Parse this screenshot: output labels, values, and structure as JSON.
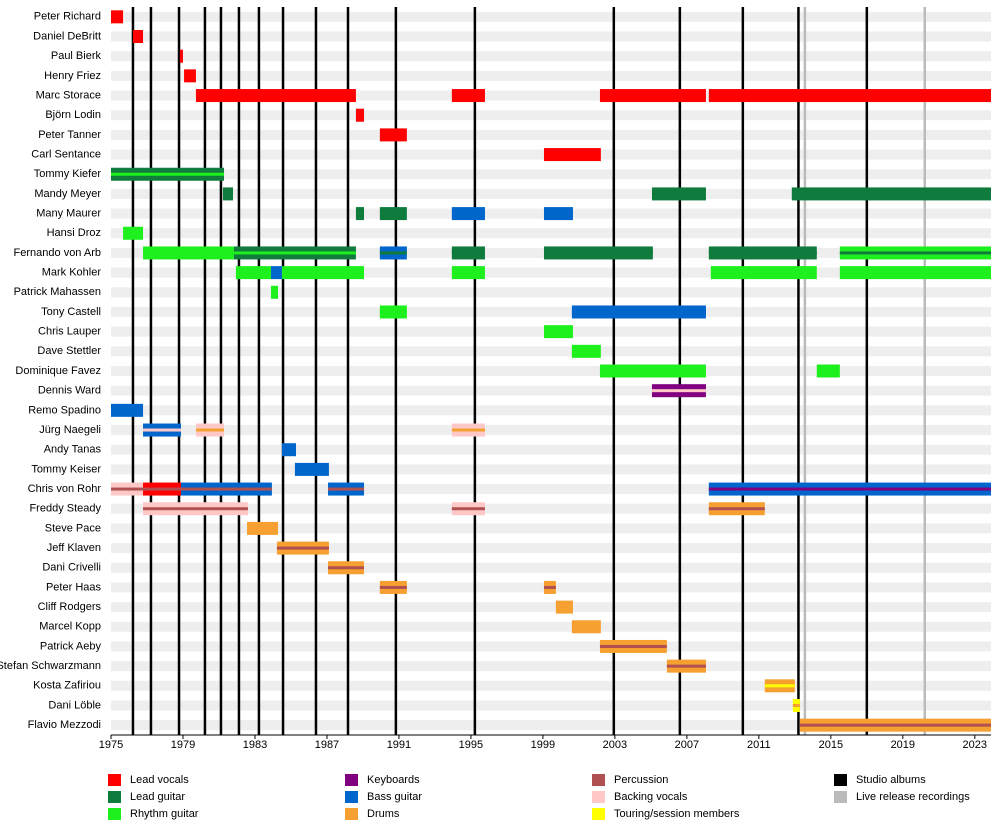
{
  "chart_data": {
    "type": "timeline",
    "xlim": [
      1975,
      2023.9
    ],
    "xticks": [
      1975,
      1979,
      1983,
      1987,
      1991,
      1995,
      1999,
      2003,
      2007,
      2011,
      2015,
      2019,
      2023
    ],
    "legend": [
      {
        "name": "Lead vocals",
        "color": "#ff0000"
      },
      {
        "name": "Lead guitar",
        "color": "#0f7b3c"
      },
      {
        "name": "Rhythm guitar",
        "color": "#1ef01e"
      },
      {
        "name": "Keyboards",
        "color": "#800080"
      },
      {
        "name": "Bass guitar",
        "color": "#0066cc"
      },
      {
        "name": "Drums",
        "color": "#f5a030"
      },
      {
        "name": "Percussion",
        "color": "#b05050"
      },
      {
        "name": "Backing vocals",
        "color": "#ffc8c8"
      },
      {
        "name": "Touring/session members",
        "color": "#ffff00"
      },
      {
        "name": "Studio albums",
        "color": "#000000"
      },
      {
        "name": "Live release recordings",
        "color": "#bbbbbb"
      }
    ],
    "studio_albums": [
      1976.22,
      1977.22,
      1978.78,
      1980.22,
      1981.11,
      1982.11,
      1983.22,
      1984.56,
      1986.39,
      1988.17,
      1990.83,
      1995.22,
      2002.94,
      2006.61,
      2010.11,
      2013.2,
      2017.0
    ],
    "live_releases": [
      2013.56,
      2020.22
    ],
    "members": [
      {
        "name": "Peter Richard",
        "bars": [
          {
            "role": 0,
            "from": 1975,
            "to": 1975.67
          }
        ]
      },
      {
        "name": "Daniel DeBritt",
        "bars": [
          {
            "role": 0,
            "from": 1976.22,
            "to": 1976.78
          }
        ]
      },
      {
        "name": "Paul Bierk",
        "bars": [
          {
            "role": 0,
            "from": 1978.83,
            "to": 1979.0
          }
        ]
      },
      {
        "name": "Henry Friez",
        "bars": [
          {
            "role": 0,
            "from": 1979.06,
            "to": 1979.72
          }
        ]
      },
      {
        "name": "Marc Storace",
        "bars": [
          {
            "role": 0,
            "from": 1979.72,
            "to": 1988.61
          },
          {
            "role": 0,
            "from": 1993.94,
            "to": 1995.78
          },
          {
            "role": 0,
            "from": 2002.17,
            "to": 2008.06
          },
          {
            "role": 0,
            "from": 2008.22,
            "to": 2023.9
          }
        ]
      },
      {
        "name": "Björn Lodin",
        "bars": [
          {
            "role": 0,
            "from": 1988.61,
            "to": 1989.06
          }
        ]
      },
      {
        "name": "Peter Tanner",
        "bars": [
          {
            "role": 0,
            "from": 1989.94,
            "to": 1991.44
          }
        ]
      },
      {
        "name": "Carl Sentance",
        "bars": [
          {
            "role": 0,
            "from": 1999.06,
            "to": 2002.22
          }
        ]
      },
      {
        "name": "Tommy Kiefer",
        "bars": [
          {
            "role": 1,
            "from": 1975,
            "to": 1981.28,
            "stripe": 2
          }
        ]
      },
      {
        "name": "Mandy Meyer",
        "bars": [
          {
            "role": 1,
            "from": 1981.22,
            "to": 1981.78
          },
          {
            "role": 1,
            "from": 2005.06,
            "to": 2008.06
          },
          {
            "role": 1,
            "from": 2012.83,
            "to": 2023.9
          }
        ]
      },
      {
        "name": "Many Maurer",
        "bars": [
          {
            "role": 1,
            "from": 1988.61,
            "to": 1989.06
          },
          {
            "role": 1,
            "from": 1989.94,
            "to": 1991.44
          },
          {
            "role": 4,
            "from": 1993.94,
            "to": 1995.78
          },
          {
            "role": 4,
            "from": 1999.06,
            "to": 2000.67
          }
        ]
      },
      {
        "name": "Hansi Droz",
        "bars": [
          {
            "role": 2,
            "from": 1975.67,
            "to": 1976.78
          }
        ]
      },
      {
        "name": "Fernando von Arb",
        "bars": [
          {
            "role": 2,
            "from": 1976.78,
            "to": 1981.83,
            "stripe": 2
          },
          {
            "role": 1,
            "from": 1981.83,
            "to": 1988.61,
            "stripe": 2
          },
          {
            "role": 4,
            "from": 1989.94,
            "to": 1991.44,
            "stripe": 1
          },
          {
            "role": 1,
            "from": 1993.94,
            "to": 1995.78,
            "stripe": 1
          },
          {
            "role": 1,
            "from": 1999.06,
            "to": 2005.11,
            "stripe": 1
          },
          {
            "role": 1,
            "from": 2008.22,
            "to": 2014.22,
            "stripe": 1
          },
          {
            "role": 2,
            "from": 2015.5,
            "to": 2023.9,
            "stripe": 1
          }
        ]
      },
      {
        "name": "Mark Kohler",
        "bars": [
          {
            "role": 2,
            "from": 1981.94,
            "to": 1983.89
          },
          {
            "role": 4,
            "from": 1983.89,
            "to": 1984.5
          },
          {
            "role": 2,
            "from": 1984.5,
            "to": 1989.06
          },
          {
            "role": 2,
            "from": 1993.94,
            "to": 1995.78
          },
          {
            "role": 2,
            "from": 2008.33,
            "to": 2014.22
          },
          {
            "role": 2,
            "from": 2015.5,
            "to": 2023.9
          }
        ]
      },
      {
        "name": "Patrick Mahassen",
        "bars": [
          {
            "role": 2,
            "from": 1983.89,
            "to": 1984.28
          }
        ]
      },
      {
        "name": "Tony Castell",
        "bars": [
          {
            "role": 2,
            "from": 1989.94,
            "to": 1991.44,
            "stripe": 2
          },
          {
            "role": 4,
            "from": 2000.61,
            "to": 2008.06,
            "stripe": 4
          }
        ]
      },
      {
        "name": "Chris Lauper",
        "bars": [
          {
            "role": 2,
            "from": 1999.06,
            "to": 2000.67
          }
        ]
      },
      {
        "name": "Dave Stettler",
        "bars": [
          {
            "role": 2,
            "from": 2000.61,
            "to": 2002.22
          }
        ]
      },
      {
        "name": "Dominique Favez",
        "bars": [
          {
            "role": 2,
            "from": 2002.17,
            "to": 2008.06
          },
          {
            "role": 2,
            "from": 2014.22,
            "to": 2015.5
          }
        ]
      },
      {
        "name": "Dennis Ward",
        "bars": [
          {
            "role": 3,
            "from": 2005.06,
            "to": 2008.06,
            "stripe": 7
          }
        ]
      },
      {
        "name": "Remo Spadino",
        "bars": [
          {
            "role": 4,
            "from": 1975,
            "to": 1976.78
          }
        ]
      },
      {
        "name": "Jürg Naegeli",
        "bars": [
          {
            "role": 4,
            "from": 1976.78,
            "to": 1978.89,
            "stripe": 7
          },
          {
            "role": 7,
            "from": 1979.72,
            "to": 1981.28,
            "stripe": 5
          },
          {
            "role": 7,
            "from": 1993.94,
            "to": 1995.78,
            "stripe": 5
          }
        ]
      },
      {
        "name": "Andy Tanas",
        "bars": [
          {
            "role": 4,
            "from": 1984.5,
            "to": 1985.28
          }
        ]
      },
      {
        "name": "Tommy Keiser",
        "bars": [
          {
            "role": 4,
            "from": 1985.22,
            "to": 1987.11
          }
        ]
      },
      {
        "name": "Chris von Rohr",
        "bars": [
          {
            "role": 7,
            "from": 1975,
            "to": 1976.78,
            "stripe": 6
          },
          {
            "role": 0,
            "from": 1976.78,
            "to": 1978.89,
            "stripe": 6
          },
          {
            "role": 4,
            "from": 1978.89,
            "to": 1983.94,
            "stripe": 6
          },
          {
            "role": 4,
            "from": 1987.06,
            "to": 1989.06,
            "stripe": 6
          },
          {
            "role": 4,
            "from": 2008.22,
            "to": 2023.9,
            "stripe": 3
          }
        ]
      },
      {
        "name": "Freddy Steady",
        "bars": [
          {
            "role": 7,
            "from": 1976.78,
            "to": 1982.61,
            "stripe": 6
          },
          {
            "role": 7,
            "from": 1993.94,
            "to": 1995.78,
            "stripe": 6
          },
          {
            "role": 5,
            "from": 2008.22,
            "to": 2011.33,
            "stripe": 6
          }
        ]
      },
      {
        "name": "Steve Pace",
        "bars": [
          {
            "role": 5,
            "from": 1982.56,
            "to": 1984.28
          }
        ]
      },
      {
        "name": "Jeff Klaven",
        "bars": [
          {
            "role": 5,
            "from": 1984.22,
            "to": 1987.11,
            "stripe": 6
          }
        ]
      },
      {
        "name": "Dani Crivelli",
        "bars": [
          {
            "role": 5,
            "from": 1987.06,
            "to": 1989.06,
            "stripe": 6
          }
        ]
      },
      {
        "name": "Peter Haas",
        "bars": [
          {
            "role": 5,
            "from": 1989.94,
            "to": 1991.44,
            "stripe": 6
          },
          {
            "role": 5,
            "from": 1999.06,
            "to": 1999.72,
            "stripe": 6
          }
        ]
      },
      {
        "name": "Cliff Rodgers",
        "bars": [
          {
            "role": 5,
            "from": 1999.72,
            "to": 2000.67
          }
        ]
      },
      {
        "name": "Marcel Kopp",
        "bars": [
          {
            "role": 5,
            "from": 2000.61,
            "to": 2002.22
          }
        ]
      },
      {
        "name": "Patrick Aeby",
        "bars": [
          {
            "role": 5,
            "from": 2002.17,
            "to": 2005.89,
            "stripe": 6
          }
        ]
      },
      {
        "name": "Stefan Schwarzmann",
        "bars": [
          {
            "role": 5,
            "from": 2005.89,
            "to": 2008.06,
            "stripe": 6
          }
        ]
      },
      {
        "name": "Kosta Zafiriou",
        "bars": [
          {
            "role": 5,
            "from": 2011.33,
            "to": 2013.0,
            "stripe": 8
          }
        ]
      },
      {
        "name": "Dani Löble",
        "bars": [
          {
            "role": 8,
            "from": 2012.89,
            "to": 2013.28,
            "stripe": 5
          }
        ]
      },
      {
        "name": "Flavio Mezzodi",
        "bars": [
          {
            "role": 5,
            "from": 2013.28,
            "to": 2023.9,
            "stripe": 6
          }
        ]
      }
    ]
  }
}
